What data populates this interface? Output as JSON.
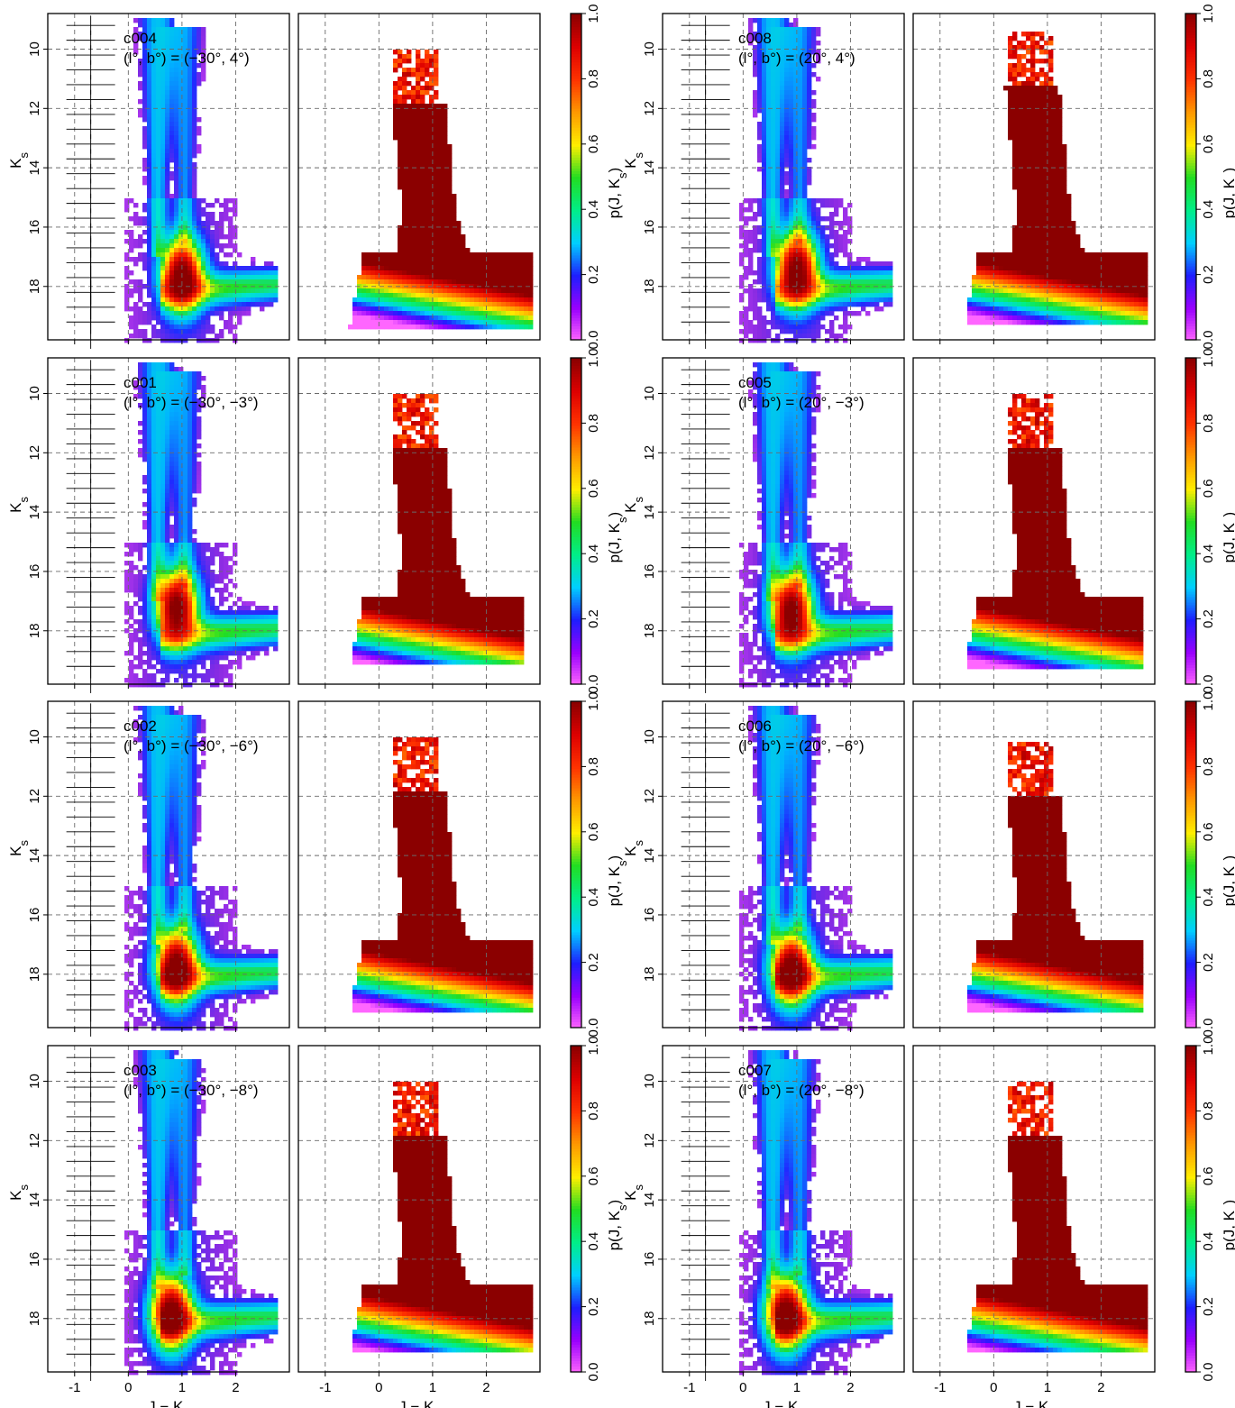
{
  "figure": {
    "x_axis_label": "J − K_s",
    "y_axis_label": "K_s",
    "colorbar_label": "p(J, K_s)"
  },
  "colormaps": {
    "density": [
      "#ff77ff",
      "#dd44ff",
      "#8a2be2",
      "#1f2bff",
      "#00b4ff",
      "#00e5d0",
      "#22dd22",
      "#ffff00",
      "#ff9900",
      "#ff2200",
      "#cc0000",
      "#8b0000"
    ],
    "probability": [
      "#ff66ff",
      "#9900ff",
      "#1e1eff",
      "#00cfff",
      "#00ee88",
      "#22dd22",
      "#ffee00",
      "#ff9900",
      "#ff3300",
      "#dd0000",
      "#8b0000"
    ]
  },
  "chart_data": [
    {
      "type": "heatmap",
      "field": "c004",
      "coords": "(l°, b°) = (−30°, 4°)",
      "l": -30,
      "b": 4,
      "xlim": [
        -1.5,
        3.0
      ],
      "ylim": [
        19.8,
        8.8
      ],
      "x_ticks": [
        "-1",
        "0",
        "1",
        "2"
      ],
      "y_ticks": [
        "10",
        "12",
        "14",
        "16",
        "18"
      ],
      "colorbar": {
        "range": [
          0.0,
          1.0
        ],
        "ticks": [
          "0.0",
          "0.2",
          "0.4",
          "0.6",
          "0.8",
          "1.0"
        ]
      },
      "density_peak": {
        "x": 1.0,
        "y": 17.6
      },
      "prob_bright_limit": 11.8,
      "prob_red_edge_x": 2.9,
      "prob_faint_limit": 19.4
    },
    {
      "type": "heatmap",
      "field": "c008",
      "coords": "(l°, b°) = (20°, 4°)",
      "l": 20,
      "b": 4,
      "xlim": [
        -1.5,
        3.0
      ],
      "ylim": [
        19.8,
        8.8
      ],
      "x_ticks": [
        "-1",
        "0",
        "1",
        "2"
      ],
      "y_ticks": [
        "10",
        "12",
        "14",
        "16",
        "18"
      ],
      "colorbar": {
        "range": [
          0.0,
          1.0
        ],
        "ticks": [
          "0.0",
          "0.2",
          "0.4",
          "0.6",
          "0.8",
          "1.0"
        ]
      },
      "density_peak": {
        "x": 1.0,
        "y": 17.4
      },
      "prob_bright_limit": 11.2,
      "prob_red_edge_x": 2.9,
      "prob_faint_limit": 19.3
    },
    {
      "type": "heatmap",
      "field": "c001",
      "coords": "(l°, b°) = (−30°, −3°)",
      "l": -30,
      "b": -3,
      "xlim": [
        -1.5,
        3.0
      ],
      "ylim": [
        19.8,
        8.8
      ],
      "x_ticks": [
        "-1",
        "0",
        "1",
        "2"
      ],
      "y_ticks": [
        "10",
        "12",
        "14",
        "16",
        "18"
      ],
      "colorbar": {
        "range": [
          0.0,
          1.0
        ],
        "ticks": [
          "0.0",
          "0.2",
          "0.4",
          "0.6",
          "0.8",
          "1.0"
        ]
      },
      "density_peak": {
        "x": 0.9,
        "y": 17.2
      },
      "prob_bright_limit": 11.8,
      "prob_red_edge_x": 2.7,
      "prob_faint_limit": 19.2
    },
    {
      "type": "heatmap",
      "field": "c005",
      "coords": "(l°, b°) = (20°, −3°)",
      "l": 20,
      "b": -3,
      "xlim": [
        -1.5,
        3.0
      ],
      "ylim": [
        19.8,
        8.8
      ],
      "x_ticks": [
        "-1",
        "0",
        "1",
        "2"
      ],
      "y_ticks": [
        "10",
        "12",
        "14",
        "16",
        "18"
      ],
      "colorbar": {
        "range": [
          0.0,
          1.0
        ],
        "ticks": [
          "0.0",
          "0.2",
          "0.4",
          "0.6",
          "0.8",
          "1.0"
        ]
      },
      "density_peak": {
        "x": 0.9,
        "y": 17.3
      },
      "prob_bright_limit": 11.8,
      "prob_red_edge_x": 2.8,
      "prob_faint_limit": 19.3
    },
    {
      "type": "heatmap",
      "field": "c002",
      "coords": "(l°, b°) = (−30°, −6°)",
      "l": -30,
      "b": -6,
      "xlim": [
        -1.5,
        3.0
      ],
      "ylim": [
        19.8,
        8.8
      ],
      "x_ticks": [
        "-1",
        "0",
        "1",
        "2"
      ],
      "y_ticks": [
        "10",
        "12",
        "14",
        "16",
        "18"
      ],
      "colorbar": {
        "range": [
          0.0,
          1.0
        ],
        "ticks": [
          "0.0",
          "0.2",
          "0.4",
          "0.6",
          "0.8",
          "1.0"
        ]
      },
      "density_peak": {
        "x": 0.9,
        "y": 17.7
      },
      "prob_bright_limit": 11.8,
      "prob_red_edge_x": 2.9,
      "prob_faint_limit": 19.3
    },
    {
      "type": "heatmap",
      "field": "c006",
      "coords": "(l°, b°) = (20°, −6°)",
      "l": 20,
      "b": -6,
      "xlim": [
        -1.5,
        3.0
      ],
      "ylim": [
        19.8,
        8.8
      ],
      "x_ticks": [
        "-1",
        "0",
        "1",
        "2"
      ],
      "y_ticks": [
        "10",
        "12",
        "14",
        "16",
        "18"
      ],
      "colorbar": {
        "range": [
          0.0,
          1.0
        ],
        "ticks": [
          "0.0",
          "0.2",
          "0.4",
          "0.6",
          "0.8",
          "1.0"
        ]
      },
      "density_peak": {
        "x": 0.9,
        "y": 17.8
      },
      "prob_bright_limit": 12.0,
      "prob_red_edge_x": 2.8,
      "prob_faint_limit": 19.3
    },
    {
      "type": "heatmap",
      "field": "c003",
      "coords": "(l°, b°) = (−30°, −8°)",
      "l": -30,
      "b": -8,
      "xlim": [
        -1.5,
        3.0
      ],
      "ylim": [
        19.8,
        8.8
      ],
      "x_ticks": [
        "-1",
        "0",
        "1",
        "2"
      ],
      "y_ticks": [
        "10",
        "12",
        "14",
        "16",
        "18"
      ],
      "colorbar": {
        "range": [
          0.0,
          1.0
        ],
        "ticks": [
          "0.0",
          "0.2",
          "0.4",
          "0.6",
          "0.8",
          "1.0"
        ]
      },
      "density_peak": {
        "x": 0.8,
        "y": 17.8
      },
      "prob_bright_limit": 11.8,
      "prob_red_edge_x": 2.9,
      "prob_faint_limit": 19.2
    },
    {
      "type": "heatmap",
      "field": "c007",
      "coords": "(l°, b°) = (20°, −8°)",
      "l": 20,
      "b": -8,
      "xlim": [
        -1.5,
        3.0
      ],
      "ylim": [
        19.8,
        8.8
      ],
      "x_ticks": [
        "-1",
        "0",
        "1",
        "2"
      ],
      "y_ticks": [
        "10",
        "12",
        "14",
        "16",
        "18"
      ],
      "colorbar": {
        "range": [
          0.0,
          1.0
        ],
        "ticks": [
          "0.0",
          "0.2",
          "0.4",
          "0.6",
          "0.8",
          "1.0"
        ]
      },
      "density_peak": {
        "x": 0.8,
        "y": 17.8
      },
      "prob_bright_limit": 11.8,
      "prob_red_edge_x": 2.9,
      "prob_faint_limit": 19.2
    }
  ]
}
